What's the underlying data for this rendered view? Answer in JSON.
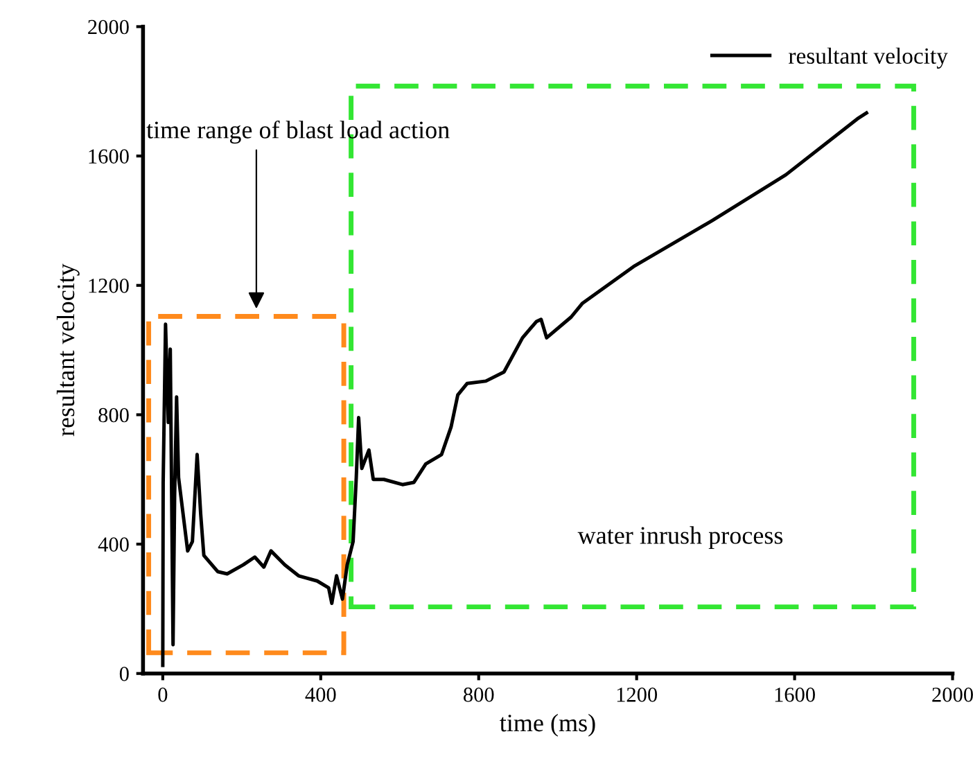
{
  "chart_data": {
    "type": "line",
    "xlabel": "time (ms)",
    "ylabel": "resultant velocity",
    "xlim": [
      -50,
      2000
    ],
    "xticks": [
      0,
      400,
      800,
      1200,
      1600,
      2000
    ],
    "ylim": [
      0,
      2000
    ],
    "yticks": [
      0,
      400,
      800,
      1200,
      1600,
      2000
    ],
    "grid": false,
    "legend": "top right",
    "marker": "none",
    "line_style": "solid",
    "annotations": [
      "time range of blast load action",
      "water inrush process"
    ],
    "series": [
      {
        "name": "resultant velocity",
        "color": "#000000",
        "x": [
          0,
          1,
          7,
          14,
          19,
          26,
          30,
          35,
          40,
          63,
          75,
          87,
          96,
          104,
          139,
          163,
          204,
          233,
          256,
          274,
          309,
          344,
          391,
          420,
          428,
          440,
          455,
          467,
          482,
          490,
          496,
          504,
          522,
          533,
          560,
          607,
          636,
          666,
          706,
          730,
          747,
          771,
          818,
          864,
          911,
          946,
          958,
          972,
          1034,
          1063,
          1192,
          1391,
          1578,
          1759,
          1782
        ],
        "values": [
          25,
          590,
          1080,
          776,
          1003,
          89,
          549,
          855,
          606,
          379,
          408,
          677,
          493,
          365,
          315,
          308,
          336,
          360,
          329,
          379,
          336,
          302,
          286,
          265,
          217,
          302,
          230,
          336,
          408,
          606,
          791,
          634,
          691,
          600,
          600,
          584,
          591,
          648,
          677,
          762,
          861,
          897,
          904,
          932,
          1038,
          1088,
          1095,
          1038,
          1102,
          1145,
          1258,
          1400,
          1542,
          1715,
          1733
        ]
      }
    ]
  }
}
